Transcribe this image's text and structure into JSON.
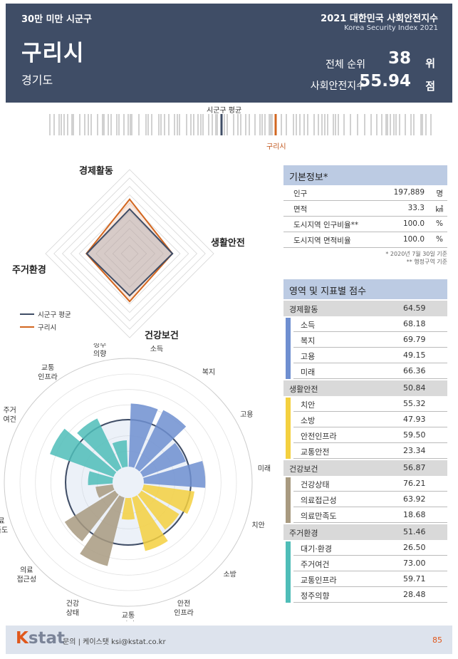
{
  "header": {
    "category": "30만 미만 시군구",
    "city": "구리시",
    "province": "경기도",
    "index_year": "2021 대한민국 사회안전지수",
    "index_sub": "Korea Security Index 2021",
    "rank_label": "전체 순위",
    "rank_value": "38",
    "rank_unit": "위",
    "score_label": "사회안전지수",
    "score_value": "55.94",
    "score_unit": "점"
  },
  "barcode": {
    "avg_label": "시군구 평균",
    "city_label": "구리시"
  },
  "radar": {
    "axes": [
      "경제활동",
      "생활안전",
      "건강보건",
      "주거환경"
    ],
    "legend_avg": "시군구 평균",
    "legend_city": "구리시",
    "avg_values": [
      53,
      51,
      50,
      51
    ],
    "city_values": [
      64.59,
      50.84,
      56.87,
      51.46
    ],
    "max": 100
  },
  "polar": {
    "labels": [
      "소득",
      "복지",
      "고용",
      "미래",
      "치안",
      "소방",
      "안전\n인프라",
      "교통\n안전",
      "건강\n상태",
      "의료\n접근성",
      "의료\n만족도",
      "대기\n환경",
      "주거\n여건",
      "교통\n인프라",
      "정주\n의향"
    ],
    "values": [
      68.18,
      69.79,
      49.15,
      66.36,
      55.32,
      47.93,
      59.5,
      23.34,
      76.21,
      63.92,
      18.68,
      26.5,
      73.0,
      59.71,
      28.48
    ],
    "colors": [
      "#6f8fd0",
      "#6f8fd0",
      "#6f8fd0",
      "#6f8fd0",
      "#f4d03f",
      "#f4d03f",
      "#f4d03f",
      "#f4d03f",
      "#a89a80",
      "#a89a80",
      "#a89a80",
      "#4fbdb8",
      "#4fbdb8",
      "#4fbdb8",
      "#4fbdb8"
    ]
  },
  "info": {
    "title": "기본정보*",
    "rows": [
      {
        "label": "인구",
        "value": "197,889",
        "unit": "명"
      },
      {
        "label": "면적",
        "value": "33.3",
        "unit": "㎢"
      },
      {
        "label": "도시지역 인구비율**",
        "value": "100.0",
        "unit": "%"
      },
      {
        "label": "도시지역 면적비율",
        "value": "100.0",
        "unit": "%"
      }
    ],
    "note1": "* 2020년 7월 30일 기준",
    "note2": "** 행정구역 기준"
  },
  "scores": {
    "title": "영역 및 지표별 점수",
    "domains": [
      {
        "name": "경제활동",
        "score": "64.59",
        "color": "#6f8fd0",
        "items": [
          {
            "name": "소득",
            "score": "68.18"
          },
          {
            "name": "복지",
            "score": "69.79"
          },
          {
            "name": "고용",
            "score": "49.15"
          },
          {
            "name": "미래",
            "score": "66.36"
          }
        ]
      },
      {
        "name": "생활안전",
        "score": "50.84",
        "color": "#f4d03f",
        "items": [
          {
            "name": "치안",
            "score": "55.32"
          },
          {
            "name": "소방",
            "score": "47.93"
          },
          {
            "name": "안전인프라",
            "score": "59.50"
          },
          {
            "name": "교통안전",
            "score": "23.34"
          }
        ]
      },
      {
        "name": "건강보건",
        "score": "56.87",
        "color": "#a89a80",
        "items": [
          {
            "name": "건강상태",
            "score": "76.21"
          },
          {
            "name": "의료접근성",
            "score": "63.92"
          },
          {
            "name": "의료만족도",
            "score": "18.68"
          }
        ]
      },
      {
        "name": "주거환경",
        "score": "51.46",
        "color": "#4fbdb8",
        "items": [
          {
            "name": "대기·환경",
            "score": "26.50"
          },
          {
            "name": "주거여건",
            "score": "73.00"
          },
          {
            "name": "교통인프라",
            "score": "59.71"
          },
          {
            "name": "정주의향",
            "score": "28.48"
          }
        ]
      }
    ]
  },
  "footer": {
    "logo_k": "K",
    "logo_rest": "stat",
    "contact": "문의 | 케이스탯 ksi@kstat.co.kr",
    "page": "85"
  }
}
